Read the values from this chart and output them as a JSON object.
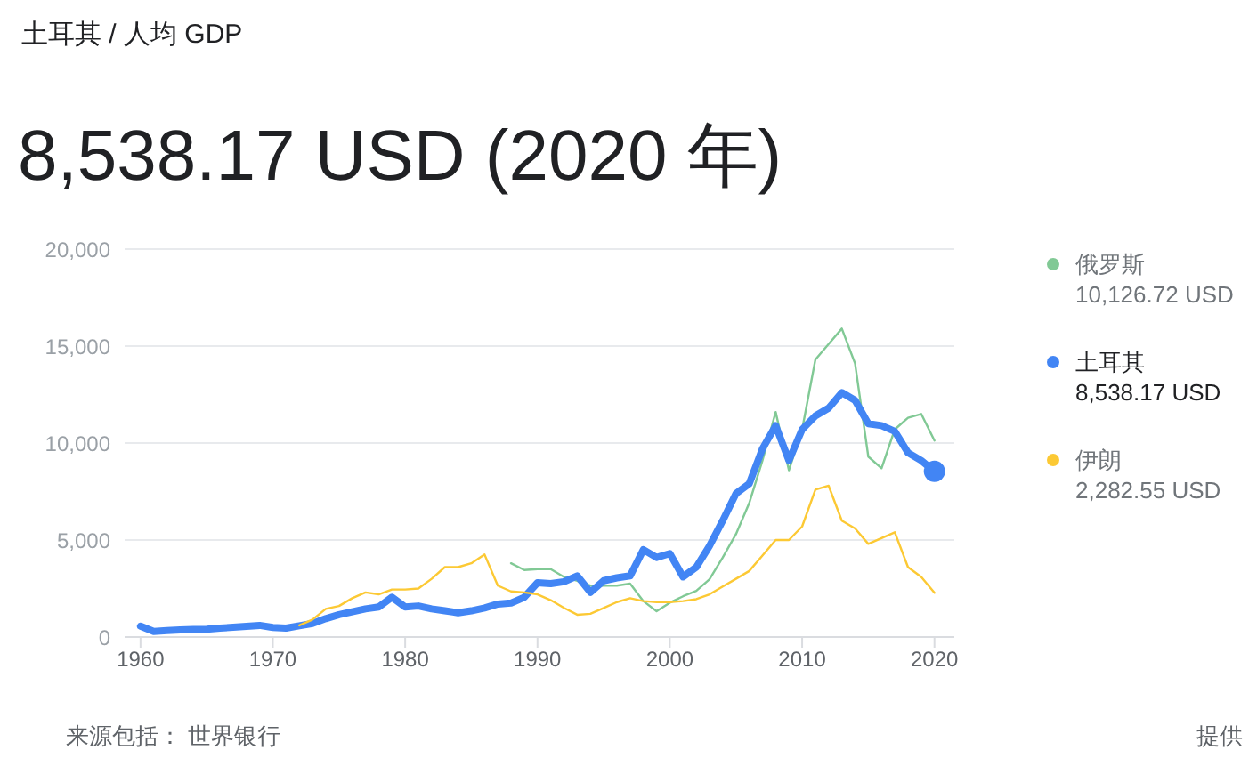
{
  "chart_data": {
    "type": "line",
    "subtitle": "土耳其 / 人均 GDP",
    "title": "8,538.17 USD (2020 年)",
    "xlim": [
      1958.8,
      2021.5
    ],
    "xticks": [
      1960,
      1970,
      1980,
      1990,
      2000,
      2010,
      2020
    ],
    "ylim": [
      0,
      20000
    ],
    "yticks": [
      0,
      {
        "value": 5000,
        "label": "5,000"
      },
      {
        "value": 10000,
        "label": "10,000"
      },
      {
        "value": 15000,
        "label": "15,000"
      },
      {
        "value": 20000,
        "label": "20,000"
      }
    ],
    "grid": "y",
    "legend": "right",
    "marker": "none",
    "line_style": "solid",
    "series": [
      {
        "name": "俄罗斯",
        "color": "#81c995",
        "x": [
          1988,
          1989,
          1990,
          1991,
          1992,
          1993,
          1994,
          1995,
          1996,
          1997,
          1998,
          1999,
          2000,
          2001,
          2002,
          2003,
          2004,
          2005,
          2006,
          2007,
          2008,
          2009,
          2010,
          2011,
          2012,
          2013,
          2014,
          2015,
          2016,
          2017,
          2018,
          2019,
          2020
        ],
        "values": [
          3800,
          3450,
          3500,
          3500,
          3100,
          2900,
          2650,
          2650,
          2650,
          2750,
          1850,
          1330,
          1770,
          2100,
          2380,
          2980,
          4100,
          5300,
          6900,
          9100,
          11600,
          8600,
          10700,
          14300,
          15100,
          15900,
          14100,
          9300,
          8700,
          10700,
          11300,
          11500,
          10126.72
        ]
      },
      {
        "name": "土耳其",
        "color": "#4285f4",
        "x": [
          1960,
          1961,
          1962,
          1963,
          1964,
          1965,
          1966,
          1967,
          1968,
          1969,
          1970,
          1971,
          1972,
          1973,
          1974,
          1975,
          1976,
          1977,
          1978,
          1979,
          1980,
          1981,
          1982,
          1983,
          1984,
          1985,
          1986,
          1987,
          1988,
          1989,
          1990,
          1991,
          1992,
          1993,
          1994,
          1995,
          1996,
          1997,
          1998,
          1999,
          2000,
          2001,
          2002,
          2003,
          2004,
          2005,
          2006,
          2007,
          2008,
          2009,
          2010,
          2011,
          2012,
          2013,
          2014,
          2015,
          2016,
          2017,
          2018,
          2019,
          2020
        ],
        "values": [
          560,
          290,
          330,
          370,
          390,
          400,
          460,
          500,
          550,
          600,
          490,
          460,
          580,
          700,
          950,
          1150,
          1300,
          1450,
          1550,
          2050,
          1550,
          1600,
          1450,
          1350,
          1250,
          1350,
          1500,
          1700,
          1750,
          2050,
          2800,
          2750,
          2850,
          3150,
          2300,
          2900,
          3050,
          3150,
          4500,
          4100,
          4300,
          3100,
          3600,
          4700,
          6000,
          7400,
          7900,
          9700,
          10900,
          9100,
          10700,
          11400,
          11800,
          12600,
          12200,
          11000,
          10900,
          10600,
          9500,
          9100,
          8538.17
        ]
      },
      {
        "name": "伊朗",
        "color": "#fcc934",
        "x": [
          1972,
          1973,
          1974,
          1975,
          1976,
          1977,
          1978,
          1979,
          1980,
          1981,
          1982,
          1983,
          1984,
          1985,
          1986,
          1987,
          1988,
          1989,
          1990,
          1991,
          1992,
          1993,
          1994,
          1995,
          1996,
          1997,
          1998,
          1999,
          2000,
          2001,
          2002,
          2003,
          2004,
          2005,
          2006,
          2007,
          2008,
          2009,
          2010,
          2011,
          2012,
          2013,
          2014,
          2015,
          2016,
          2017,
          2018,
          2019,
          2020
        ],
        "values": [
          600,
          900,
          1450,
          1600,
          2000,
          2300,
          2200,
          2450,
          2450,
          2500,
          3000,
          3600,
          3600,
          3800,
          4250,
          2650,
          2350,
          2300,
          2200,
          1900,
          1500,
          1150,
          1200,
          1500,
          1800,
          2000,
          1850,
          1800,
          1800,
          1850,
          1950,
          2200,
          2600,
          3000,
          3400,
          4200,
          5000,
          5000,
          5700,
          7600,
          7800,
          6000,
          5600,
          4800,
          5100,
          5400,
          3600,
          3100,
          2282.55
        ]
      },
      {
        "type": "scatter",
        "color": "#4285f4",
        "x": [
          2020
        ],
        "values": [
          8538.17
        ],
        "marker": "circle"
      }
    ],
    "annotations": [
      "10,126.72 USD",
      "8,538.17 USD",
      "2,282.55 USD",
      "来源包括： 世界银行",
      "提供"
    ]
  }
}
